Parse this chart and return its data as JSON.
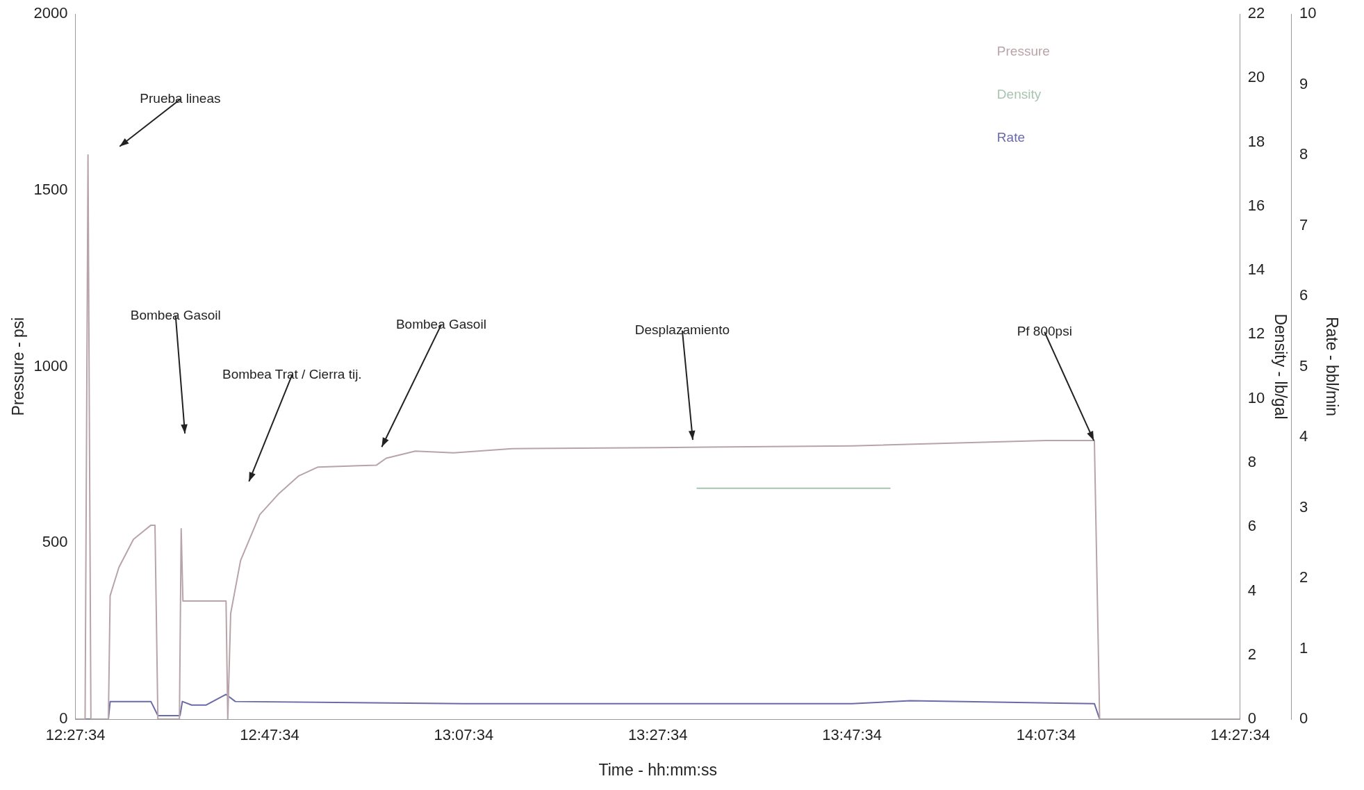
{
  "chart_data": {
    "type": "line",
    "xlabel": "Time - hh:mm:ss",
    "ylabel": "Pressure - psi",
    "y2label": "Density - lb/gal",
    "y3label": "Rate - bbl/min",
    "xlim": [
      12.4594,
      14.4594
    ],
    "xticks": [
      {
        "value": 12.4594,
        "label": "12:27:34"
      },
      {
        "value": 12.7928,
        "label": "12:47:34"
      },
      {
        "value": 13.1261,
        "label": "13:07:34"
      },
      {
        "value": 13.4594,
        "label": "13:27:34"
      },
      {
        "value": 13.7928,
        "label": "13:47:34"
      },
      {
        "value": 14.1261,
        "label": "14:07:34"
      },
      {
        "value": 14.4594,
        "label": "14:27:34"
      }
    ],
    "ylim": [
      0,
      2000
    ],
    "yticks": [
      0,
      500,
      1000,
      1500,
      2000
    ],
    "y2lim": [
      0,
      22
    ],
    "y2ticks": [
      0,
      2,
      4,
      6,
      8,
      10,
      12,
      14,
      16,
      18,
      20,
      22
    ],
    "y3lim": [
      0,
      10
    ],
    "y3ticks": [
      0,
      1,
      2,
      3,
      4,
      5,
      6,
      7,
      8,
      9,
      10
    ],
    "grid": false,
    "legend": "top right",
    "marker": "none",
    "line_style": "solid",
    "series": [
      {
        "name": "Pressure",
        "color": "#b8a4a8",
        "x": [
          12.4594,
          12.476,
          12.481,
          12.486,
          12.516,
          12.519,
          12.534,
          12.559,
          12.589,
          12.596,
          12.601,
          12.638,
          12.641,
          12.644,
          12.718,
          12.721,
          12.726,
          12.743,
          12.776,
          12.809,
          12.843,
          12.876,
          12.976,
          12.993,
          13.043,
          13.109,
          13.209,
          13.459,
          13.793,
          14.126,
          14.209,
          14.218,
          14.459
        ],
        "values": [
          0,
          0,
          1600,
          0,
          0,
          350,
          430,
          510,
          550,
          550,
          0,
          0,
          540,
          335,
          335,
          0,
          300,
          450,
          580,
          640,
          690,
          715,
          720,
          740,
          760,
          755,
          767,
          770,
          775,
          790,
          790,
          0,
          0
        ]
      },
      {
        "name": "Density",
        "color": "#a8c4b0",
        "axis": "y2",
        "x": [
          13.526,
          13.859
        ],
        "values": [
          7.2,
          7.2
        ]
      },
      {
        "name": "Rate",
        "color": "#6a6aa8",
        "axis": "y3",
        "x": [
          12.4594,
          12.516,
          12.519,
          12.589,
          12.601,
          12.639,
          12.643,
          12.659,
          12.684,
          12.718,
          12.734,
          13.126,
          13.793,
          13.893,
          14.209,
          14.218,
          14.459
        ],
        "values": [
          0,
          0,
          0.25,
          0.25,
          0.05,
          0.05,
          0.25,
          0.2,
          0.2,
          0.35,
          0.25,
          0.22,
          0.22,
          0.26,
          0.22,
          0,
          0
        ]
      }
    ],
    "annotations": [
      "Prueba lineas",
      "Bombea Gasoil",
      "Bombea Trat / Cierra tij.",
      "Bombea Gasoil",
      "Desplazamiento",
      {
        "text": "Pf 800psi",
        "x": 14.208,
        "y": 790
      }
    ]
  }
}
